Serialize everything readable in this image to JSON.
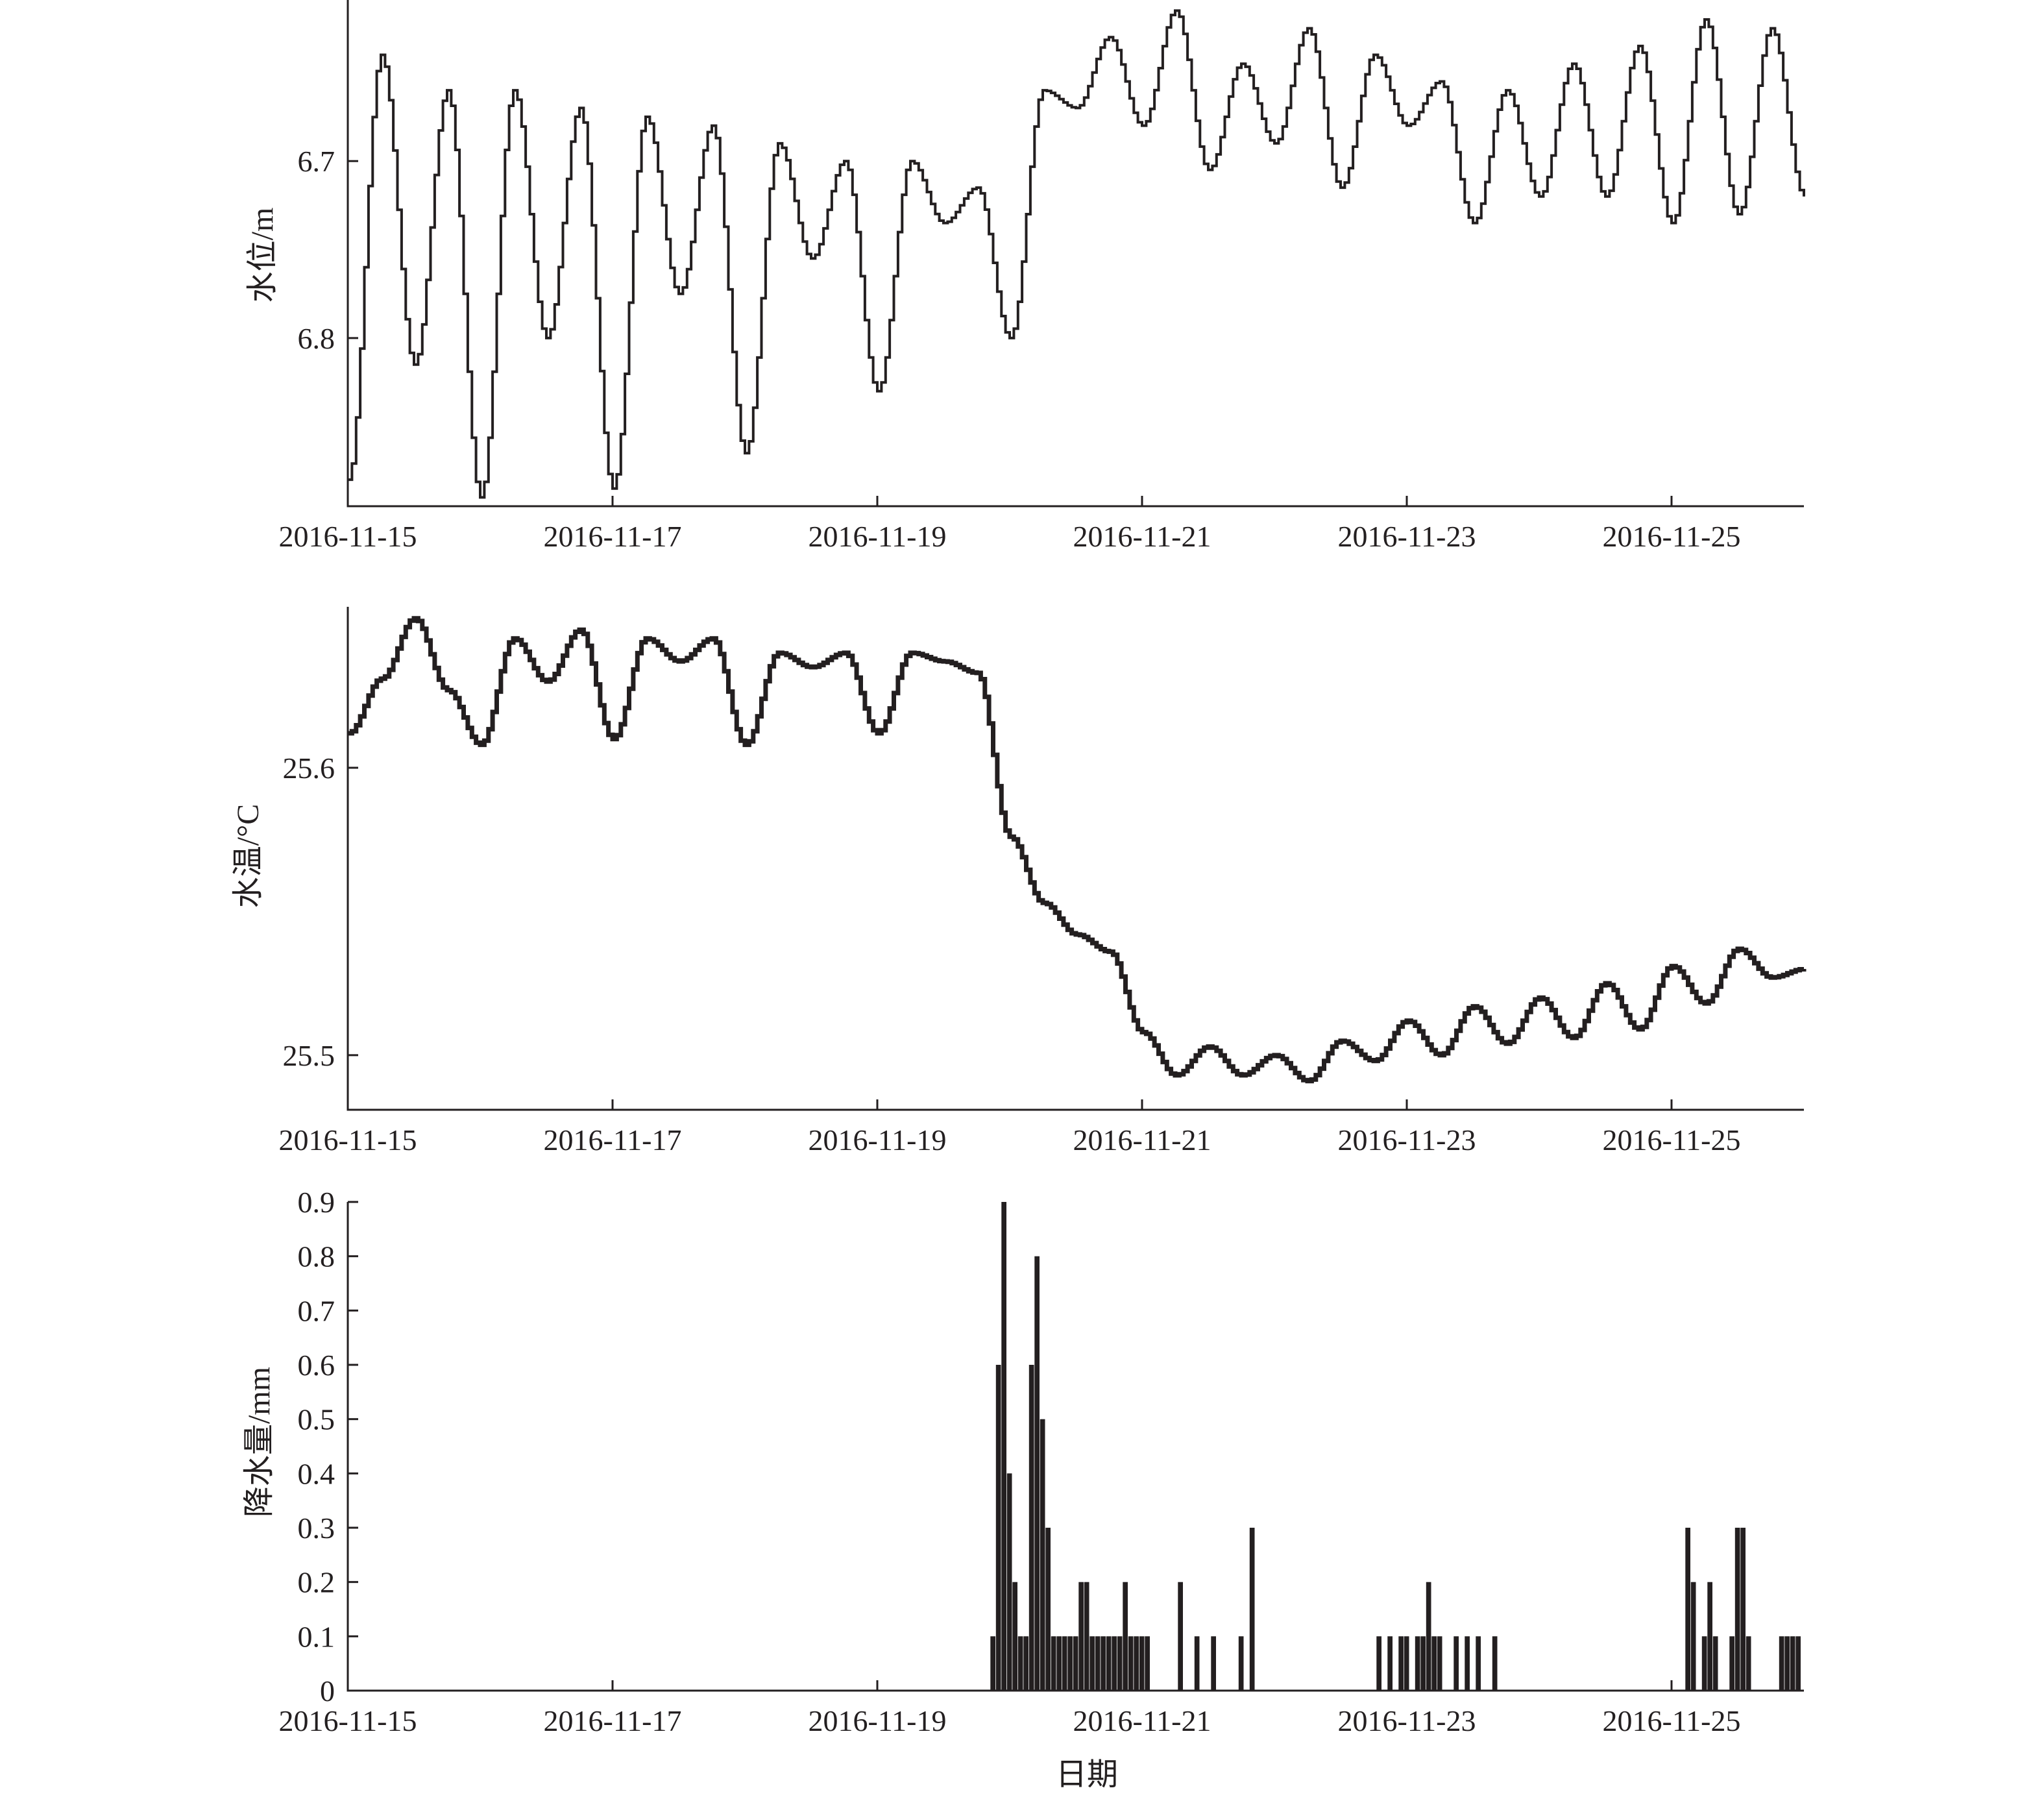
{
  "chart_data": [
    {
      "type": "line",
      "ylabel": "水位/m",
      "y_axis_inverted": true,
      "ylim": [
        6.895,
        6.609
      ],
      "yticks": [
        6.7,
        6.8
      ],
      "ytick_labels": [
        "6.7",
        "6.8"
      ],
      "xlim": [
        "2016-11-15T00:00",
        "2016-11-26T00:00"
      ],
      "xticks": [
        "2016-11-15",
        "2016-11-17",
        "2016-11-19",
        "2016-11-21",
        "2016-11-23",
        "2016-11-25"
      ],
      "grid": false,
      "series": [
        {
          "x": [
            "2016-11-15T00:00",
            "2016-11-15T06:00",
            "2016-11-15T12:00",
            "2016-11-15T18:00",
            "2016-11-16T00:00",
            "2016-11-16T06:00",
            "2016-11-16T12:00",
            "2016-11-16T18:00",
            "2016-11-17T00:00",
            "2016-11-17T06:00",
            "2016-11-17T12:00",
            "2016-11-17T18:00",
            "2016-11-18T00:00",
            "2016-11-18T06:00",
            "2016-11-18T12:00",
            "2016-11-18T18:00",
            "2016-11-19T00:00",
            "2016-11-19T06:00",
            "2016-11-19T12:00",
            "2016-11-19T18:00",
            "2016-11-20T00:00",
            "2016-11-20T06:00",
            "2016-11-20T12:00",
            "2016-11-20T18:00",
            "2016-11-21T00:00",
            "2016-11-21T06:00",
            "2016-11-21T12:00",
            "2016-11-21T18:00",
            "2016-11-22T00:00",
            "2016-11-22T06:00",
            "2016-11-22T12:00",
            "2016-11-22T18:00",
            "2016-11-23T00:00",
            "2016-11-23T06:00",
            "2016-11-23T12:00",
            "2016-11-23T18:00",
            "2016-11-24T00:00",
            "2016-11-24T06:00",
            "2016-11-24T12:00",
            "2016-11-24T18:00",
            "2016-11-25T00:00",
            "2016-11-25T06:00",
            "2016-11-25T12:00",
            "2016-11-25T18:00",
            "2016-11-26T00:00"
          ],
          "values": [
            6.88,
            6.64,
            6.815,
            6.66,
            6.89,
            6.66,
            6.8,
            6.67,
            6.885,
            6.675,
            6.775,
            6.68,
            6.865,
            6.69,
            6.755,
            6.7,
            6.83,
            6.7,
            6.735,
            6.715,
            6.8,
            6.66,
            6.67,
            6.63,
            6.68,
            6.615,
            6.705,
            6.645,
            6.69,
            6.625,
            6.715,
            6.64,
            6.68,
            6.655,
            6.735,
            6.66,
            6.72,
            6.645,
            6.72,
            6.635,
            6.735,
            6.62,
            6.73,
            6.625,
            6.72
          ]
        }
      ]
    },
    {
      "type": "line",
      "ylabel": "水温/°C",
      "ylim": [
        25.481,
        25.656
      ],
      "yticks": [
        25.5,
        25.6
      ],
      "ytick_labels": [
        "25.5",
        "25.6"
      ],
      "xlim": [
        "2016-11-15T00:00",
        "2016-11-26T00:00"
      ],
      "xticks": [
        "2016-11-15",
        "2016-11-17",
        "2016-11-19",
        "2016-11-21",
        "2016-11-23",
        "2016-11-25"
      ],
      "grid": false,
      "series": [
        {
          "x": [
            "2016-11-15T00:00",
            "2016-11-15T06:00",
            "2016-11-15T12:00",
            "2016-11-15T18:00",
            "2016-11-16T00:00",
            "2016-11-16T06:00",
            "2016-11-16T12:00",
            "2016-11-16T18:00",
            "2016-11-17T00:00",
            "2016-11-17T06:00",
            "2016-11-17T12:00",
            "2016-11-17T18:00",
            "2016-11-18T00:00",
            "2016-11-18T06:00",
            "2016-11-18T12:00",
            "2016-11-18T18:00",
            "2016-11-19T00:00",
            "2016-11-19T06:00",
            "2016-11-19T12:00",
            "2016-11-19T18:00",
            "2016-11-20T00:00",
            "2016-11-20T06:00",
            "2016-11-20T12:00",
            "2016-11-20T18:00",
            "2016-11-21T00:00",
            "2016-11-21T06:00",
            "2016-11-21T12:00",
            "2016-11-21T18:00",
            "2016-11-22T00:00",
            "2016-11-22T06:00",
            "2016-11-22T12:00",
            "2016-11-22T18:00",
            "2016-11-23T00:00",
            "2016-11-23T06:00",
            "2016-11-23T12:00",
            "2016-11-23T18:00",
            "2016-11-24T00:00",
            "2016-11-24T06:00",
            "2016-11-24T12:00",
            "2016-11-24T18:00",
            "2016-11-25T00:00",
            "2016-11-25T06:00",
            "2016-11-25T12:00",
            "2016-11-25T18:00",
            "2016-11-26T00:00"
          ],
          "values": [
            25.612,
            25.631,
            25.652,
            25.627,
            25.608,
            25.645,
            25.63,
            25.648,
            25.61,
            25.645,
            25.637,
            25.645,
            25.608,
            25.64,
            25.635,
            25.64,
            25.612,
            25.64,
            25.637,
            25.633,
            25.576,
            25.553,
            25.542,
            25.536,
            25.508,
            25.493,
            25.503,
            25.493,
            25.5,
            25.491,
            25.505,
            25.498,
            25.512,
            25.5,
            25.517,
            25.504,
            25.52,
            25.506,
            25.525,
            25.509,
            25.531,
            25.518,
            25.537,
            25.527,
            25.53
          ]
        }
      ]
    },
    {
      "type": "bar",
      "xlabel": "日期",
      "ylabel": "降水量/mm",
      "ylim": [
        0,
        0.9
      ],
      "yticks": [
        0,
        0.1,
        0.2,
        0.3,
        0.4,
        0.5,
        0.6,
        0.7,
        0.8,
        0.9
      ],
      "ytick_labels": [
        "0",
        "0.1",
        "0.2",
        "0.3",
        "0.4",
        "0.5",
        "0.6",
        "0.7",
        "0.8",
        "0.9"
      ],
      "xlim": [
        "2016-11-15T00:00",
        "2016-11-26T00:00"
      ],
      "xticks": [
        "2016-11-15",
        "2016-11-17",
        "2016-11-19",
        "2016-11-21",
        "2016-11-23",
        "2016-11-25"
      ],
      "grid": false,
      "series": [
        {
          "x": [
            "2016-11-19T21:00",
            "2016-11-19T22:00",
            "2016-11-19T23:00",
            "2016-11-20T00:00",
            "2016-11-20T01:00",
            "2016-11-20T02:00",
            "2016-11-20T03:00",
            "2016-11-20T04:00",
            "2016-11-20T05:00",
            "2016-11-20T06:00",
            "2016-11-20T07:00",
            "2016-11-20T08:00",
            "2016-11-20T09:00",
            "2016-11-20T10:00",
            "2016-11-20T11:00",
            "2016-11-20T12:00",
            "2016-11-20T13:00",
            "2016-11-20T14:00",
            "2016-11-20T15:00",
            "2016-11-20T16:00",
            "2016-11-20T17:00",
            "2016-11-20T18:00",
            "2016-11-20T19:00",
            "2016-11-20T20:00",
            "2016-11-20T21:00",
            "2016-11-20T22:00",
            "2016-11-20T23:00",
            "2016-11-21T00:00",
            "2016-11-21T01:00",
            "2016-11-21T07:00",
            "2016-11-21T10:00",
            "2016-11-21T13:00",
            "2016-11-21T18:00",
            "2016-11-21T20:00",
            "2016-11-22T19:00",
            "2016-11-22T21:00",
            "2016-11-22T23:00",
            "2016-11-23T00:00",
            "2016-11-23T02:00",
            "2016-11-23T03:00",
            "2016-11-23T04:00",
            "2016-11-23T05:00",
            "2016-11-23T06:00",
            "2016-11-23T09:00",
            "2016-11-23T11:00",
            "2016-11-23T13:00",
            "2016-11-23T16:00",
            "2016-11-25T03:00",
            "2016-11-25T04:00",
            "2016-11-25T06:00",
            "2016-11-25T07:00",
            "2016-11-25T08:00",
            "2016-11-25T11:00",
            "2016-11-25T12:00",
            "2016-11-25T13:00",
            "2016-11-25T14:00",
            "2016-11-25T20:00",
            "2016-11-25T21:00",
            "2016-11-25T22:00",
            "2016-11-25T23:00"
          ],
          "values": [
            0.1,
            0.6,
            0.9,
            0.4,
            0.2,
            0.1,
            0.1,
            0.6,
            0.8,
            0.5,
            0.3,
            0.1,
            0.1,
            0.1,
            0.1,
            0.1,
            0.2,
            0.2,
            0.1,
            0.1,
            0.1,
            0.1,
            0.1,
            0.1,
            0.2,
            0.1,
            0.1,
            0.1,
            0.1,
            0.2,
            0.1,
            0.1,
            0.1,
            0.3,
            0.1,
            0.1,
            0.1,
            0.1,
            0.1,
            0.1,
            0.2,
            0.1,
            0.1,
            0.1,
            0.1,
            0.1,
            0.1,
            0.3,
            0.2,
            0.1,
            0.2,
            0.1,
            0.1,
            0.3,
            0.3,
            0.1,
            0.1,
            0.1,
            0.1,
            0.1
          ]
        }
      ]
    }
  ]
}
